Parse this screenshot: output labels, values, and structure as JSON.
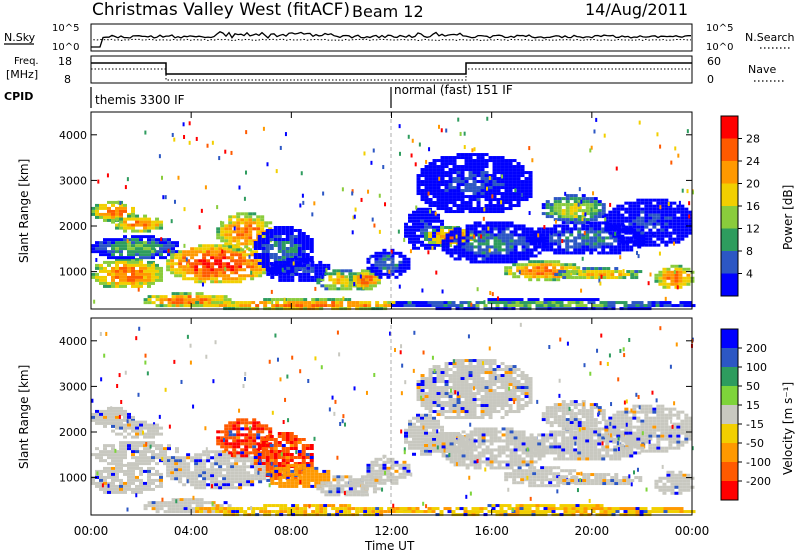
{
  "header": {
    "title": "Christmas Valley West (fitACF)",
    "beam": "Beam 12",
    "date": "14/Aug/2011"
  },
  "panels": {
    "nsky_label": "N.Sky",
    "nsky_ticks": [
      "10^5",
      "10^0"
    ],
    "nsearch_label": "N.Search",
    "nsearch_ticks": [
      "10^5",
      "10^0"
    ],
    "freq_label_1": "Freq.",
    "freq_label_2": "[MHz]",
    "freq_ticks": [
      "18",
      "8"
    ],
    "nave_label": "Nave",
    "nave_ticks": [
      "60",
      "0"
    ],
    "cpid_label": "CPID",
    "cpid_modes": [
      "themis 3300 IF",
      "normal (fast) 151 IF"
    ]
  },
  "chart_data": [
    {
      "type": "heatmap",
      "title": "",
      "ylabel": "Slant Range [km]",
      "xlabel": "",
      "ylim": [
        180,
        4500
      ],
      "yticks": [
        "1000",
        "2000",
        "3000",
        "4000"
      ],
      "colorbar": {
        "label": "Power [dB]",
        "ticks": [
          "28",
          "24",
          "20",
          "16",
          "12",
          "8",
          "4"
        ],
        "colors": [
          "#ff0000",
          "#ff5a00",
          "#ff9900",
          "#f2cf00",
          "#8acc3c",
          "#2e9c5e",
          "#2c57c4",
          "#0000ff"
        ]
      }
    },
    {
      "type": "heatmap",
      "title": "",
      "ylabel": "Slant Range [km]",
      "xlabel": "Time UT",
      "ylim": [
        180,
        4500
      ],
      "yticks": [
        "1000",
        "2000",
        "3000",
        "4000"
      ],
      "xticks": [
        "00:00",
        "04:00",
        "08:00",
        "12:00",
        "16:00",
        "20:00",
        "00:00"
      ],
      "colorbar": {
        "label": "Velocity [m s⁻¹]",
        "ticks": [
          "200",
          "100",
          "50",
          "15",
          "-15",
          "-50",
          "-100",
          "-200"
        ],
        "colors": [
          "#0000ff",
          "#2c57c4",
          "#2e9c5e",
          "#7ed43a",
          "#c8c8c0",
          "#f2cf00",
          "#ff9900",
          "#ff5a00",
          "#ff0000"
        ]
      }
    }
  ]
}
